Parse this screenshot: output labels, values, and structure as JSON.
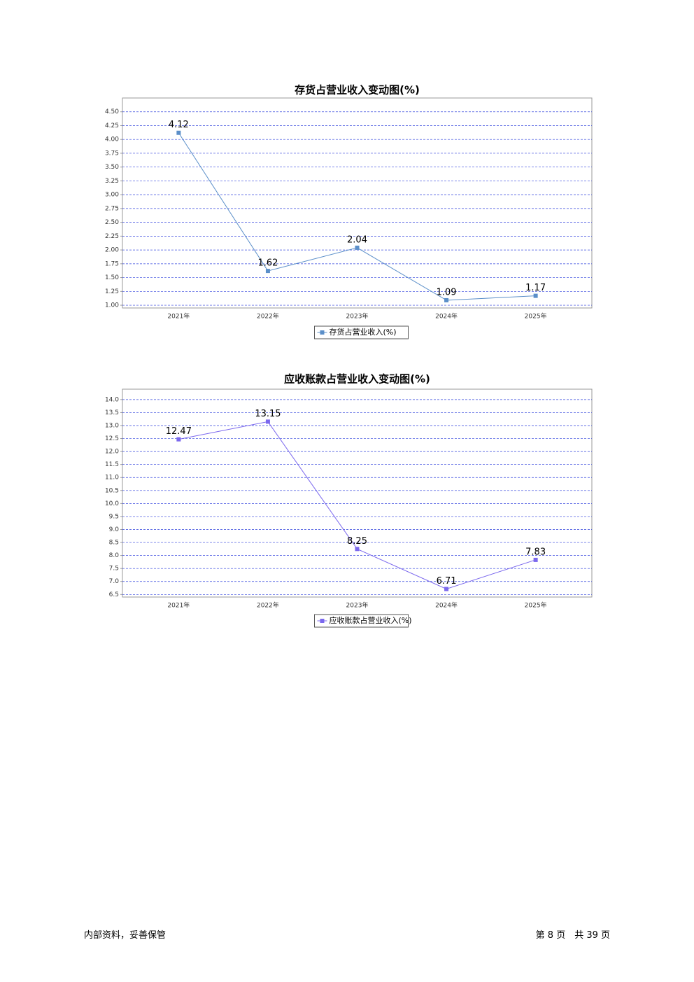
{
  "chart_data": [
    {
      "type": "line",
      "title": "存货占营业收入变动图(%)",
      "categories": [
        "2021年",
        "2022年",
        "2023年",
        "2024年",
        "2025年"
      ],
      "series": [
        {
          "name": "存货占营业收入(%)",
          "color": "#5b8fc9",
          "values": [
            4.12,
            1.62,
            2.04,
            1.09,
            1.17
          ]
        }
      ],
      "ylim": [
        0.95,
        4.75
      ],
      "yticks": [
        {
          "value": 1,
          "label": "1.00"
        },
        {
          "value": 1.25,
          "label": "1.25"
        },
        {
          "value": 1.5,
          "label": "1.50"
        },
        {
          "value": 1.75,
          "label": "1.75"
        },
        {
          "value": 2,
          "label": "2.00"
        },
        {
          "value": 2.25,
          "label": "2.25"
        },
        {
          "value": 2.5,
          "label": "2.50"
        },
        {
          "value": 2.75,
          "label": "2.75"
        },
        {
          "value": 3,
          "label": "3.00"
        },
        {
          "value": 3.25,
          "label": "3.25"
        },
        {
          "value": 3.5,
          "label": "3.50"
        },
        {
          "value": 3.75,
          "label": "3.75"
        },
        {
          "value": 4,
          "label": "4.00"
        },
        {
          "value": 4.25,
          "label": "4.25"
        },
        {
          "value": 4.5,
          "label": "4.50"
        }
      ],
      "grid": true
    },
    {
      "type": "line",
      "title": "应收账款占营业收入变动图(%)",
      "categories": [
        "2021年",
        "2022年",
        "2023年",
        "2024年",
        "2025年"
      ],
      "series": [
        {
          "name": "应收账款占营业收入(%)",
          "color": "#7b68ee",
          "values": [
            12.47,
            13.15,
            8.25,
            6.71,
            7.83
          ]
        }
      ],
      "ylim": [
        6.4,
        14.4
      ],
      "yticks": [
        6.5,
        {
          "value": 7,
          "label": "7.0"
        },
        7.5,
        {
          "value": 8,
          "label": "8.0"
        },
        8.5,
        {
          "value": 9,
          "label": "9.0"
        },
        9.5,
        {
          "value": 10,
          "label": "10.0"
        },
        10.5,
        {
          "value": 11,
          "label": "11.0"
        },
        11.5,
        {
          "value": 12,
          "label": "12.0"
        },
        12.5,
        {
          "value": 13,
          "label": "13.0"
        },
        13.5,
        {
          "value": 14,
          "label": "14.0"
        }
      ],
      "grid": true
    }
  ],
  "footer": {
    "left": "内部资料，妥善保管",
    "right": "第 8 页　共 39 页"
  }
}
